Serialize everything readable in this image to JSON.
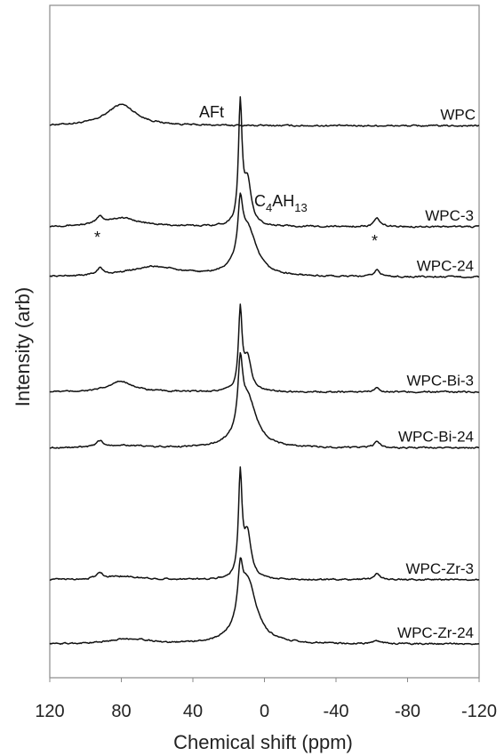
{
  "chart_data": {
    "type": "line",
    "title": "",
    "xlabel": "Chemical shift (ppm)",
    "ylabel": "Intensity (arb)",
    "xlim": [
      120,
      -120
    ],
    "x_reversed": true,
    "x_ticks": [
      "120",
      "80",
      "40",
      "0",
      "-40",
      "-80",
      "-120"
    ],
    "x_tick_values": [
      120,
      80,
      40,
      0,
      -40,
      -80,
      -120
    ],
    "y_ticks_shown": false,
    "grid": false,
    "legend": "labels at right end of each trace",
    "series": [
      {
        "name": "WPC",
        "peaks": [
          {
            "x": 80,
            "height": 3.2,
            "width": 10
          }
        ],
        "offset": 9.85
      },
      {
        "name": "WPC-3",
        "peaks": [
          {
            "x": 13.5,
            "height": 17.6,
            "width": 1.2
          },
          {
            "x": 9.5,
            "height": 6.5,
            "width": 2.5
          },
          {
            "x": 92,
            "height": 1.0,
            "width": 2
          },
          {
            "x": -63,
            "height": 1.2,
            "width": 2
          },
          {
            "x": 80,
            "height": 1.3,
            "width": 12
          }
        ],
        "offset": 8.05
      },
      {
        "name": "WPC-24",
        "peaks": [
          {
            "x": 13.5,
            "height": 7.5,
            "width": 1.5
          },
          {
            "x": 9.5,
            "height": 7.2,
            "width": 6
          },
          {
            "x": 92,
            "height": 1.0,
            "width": 2
          },
          {
            "x": -63,
            "height": 1.0,
            "width": 2
          },
          {
            "x": 62,
            "height": 1.5,
            "width": 18
          }
        ],
        "offset": 7.15
      },
      {
        "name": "WPC-Bi-3",
        "peaks": [
          {
            "x": 13.5,
            "height": 11.7,
            "width": 1.2
          },
          {
            "x": 9.5,
            "height": 5.0,
            "width": 2.5
          },
          {
            "x": 80,
            "height": 1.6,
            "width": 8
          },
          {
            "x": -63,
            "height": 0.6,
            "width": 2
          }
        ],
        "offset": 5.1
      },
      {
        "name": "WPC-Bi-24",
        "peaks": [
          {
            "x": 13.5,
            "height": 9.0,
            "width": 1.5
          },
          {
            "x": 9.5,
            "height": 7.5,
            "width": 6
          },
          {
            "x": 92,
            "height": 0.9,
            "width": 2
          },
          {
            "x": -63,
            "height": 0.9,
            "width": 2
          },
          {
            "x": 80,
            "height": 0.4,
            "width": 12
          }
        ],
        "offset": 4.1
      },
      {
        "name": "WPC-Zr-3",
        "peaks": [
          {
            "x": 13.5,
            "height": 15.0,
            "width": 1.2
          },
          {
            "x": 9.5,
            "height": 6.7,
            "width": 2.5
          },
          {
            "x": 92,
            "height": 0.9,
            "width": 2
          },
          {
            "x": -63,
            "height": 0.9,
            "width": 2
          },
          {
            "x": 80,
            "height": 0.5,
            "width": 12
          }
        ],
        "offset": 1.75
      },
      {
        "name": "WPC-Zr-24",
        "peaks": [
          {
            "x": 13.5,
            "height": 6.4,
            "width": 1.5
          },
          {
            "x": 9.5,
            "height": 9.5,
            "width": 6
          },
          {
            "x": 80,
            "height": 0.5,
            "width": 12
          },
          {
            "x": 70,
            "height": 0.4,
            "width": 8
          },
          {
            "x": -63,
            "height": 0.4,
            "width": 3
          }
        ],
        "offset": 0.6
      }
    ],
    "annotations": [
      {
        "text": "AFt",
        "x": 13.5
      },
      {
        "text": "C",
        "sub1": "4",
        "text2": "AH",
        "sub2": "13",
        "x": 9.5
      },
      {
        "text": "*",
        "x": 92
      },
      {
        "text": "*",
        "x": -63
      }
    ]
  }
}
